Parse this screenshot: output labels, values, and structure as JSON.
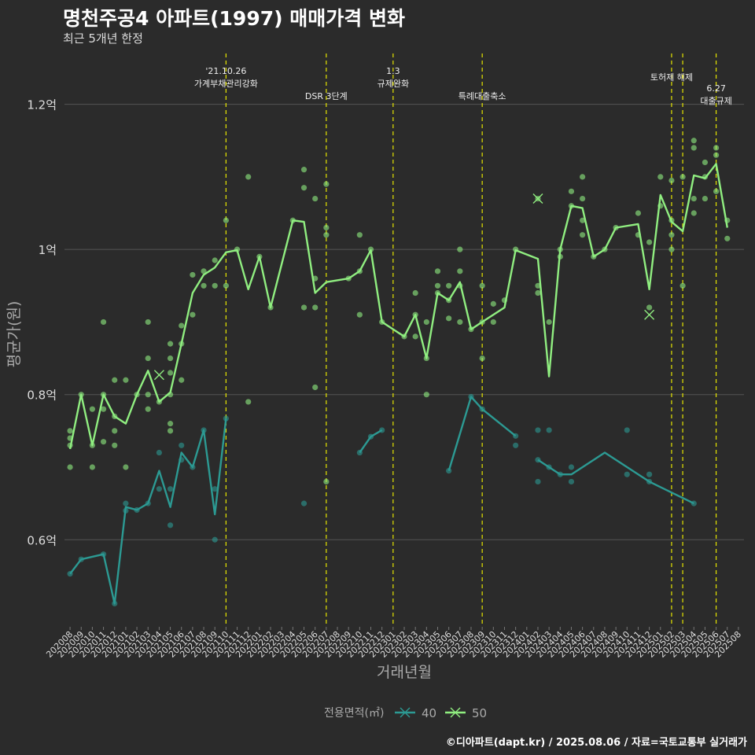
{
  "title": "명천주공4 아파트(1997) 매매가격 변화",
  "subtitle": "최근 5개년 한정",
  "caption": "©디아파트(dapt.kr) / 2025.08.06 / 자료=국토교통부 실거래가",
  "chart_data": {
    "type": "line",
    "xlabel": "거래년월",
    "ylabel": "평균가(원)",
    "x": [
      "202008",
      "202009",
      "202010",
      "202011",
      "202012",
      "202101",
      "202102",
      "202103",
      "202104",
      "202105",
      "202106",
      "202107",
      "202108",
      "202109",
      "202110",
      "202111",
      "202112",
      "202201",
      "202202",
      "202203",
      "202204",
      "202205",
      "202206",
      "202207",
      "202208",
      "202209",
      "202210",
      "202211",
      "202212",
      "202301",
      "202302",
      "202303",
      "202304",
      "202305",
      "202306",
      "202307",
      "202308",
      "202309",
      "202310",
      "202311",
      "202312",
      "202401",
      "202402",
      "202403",
      "202404",
      "202405",
      "202406",
      "202407",
      "202408",
      "202409",
      "202410",
      "202411",
      "202412",
      "202501",
      "202502",
      "202503",
      "202504",
      "202505",
      "202506",
      "202507",
      "202508"
    ],
    "x_tick_labels": [
      "202008",
      "202009",
      "202010",
      "202011",
      "202012",
      "202101",
      "202102",
      "202103",
      "202104",
      "202105",
      "202106",
      "202107",
      "202108",
      "202109",
      "202110",
      "202111",
      "202112",
      "202201",
      "202202",
      "202203",
      "202204",
      "202205",
      "202206",
      "202207",
      "202208",
      "202209",
      "202210",
      "202211",
      "202212",
      "202301",
      "202302",
      "202303",
      "202304",
      "202305",
      "202306",
      "202307",
      "202308",
      "202309",
      "202310",
      "202311",
      "202312",
      "202401",
      "202402",
      "202403",
      "202404",
      "202405",
      "202406",
      "202407",
      "202408",
      "202409",
      "202410",
      "202411",
      "202412",
      "202501",
      "202502",
      "202503",
      "202504",
      "202505",
      "202506",
      "202507",
      "202508"
    ],
    "y_ticks": [
      0.6,
      0.8,
      1.0,
      1.2
    ],
    "y_tick_labels": [
      "0.6억",
      "0.8억",
      "1억",
      "1.2억"
    ],
    "ylim": [
      0.48,
      1.27
    ],
    "grid": true,
    "legend": {
      "title": "전용면적(㎡)",
      "position": "bottom"
    },
    "series": [
      {
        "name": "40",
        "color": "#2c9a93",
        "line": [
          [
            "202008",
            0.553
          ],
          [
            "202009",
            0.573
          ],
          [
            "202011",
            0.58
          ],
          [
            "202012",
            0.512
          ],
          [
            "202101",
            0.645
          ],
          [
            "202102",
            0.641
          ],
          [
            "202103",
            0.65
          ],
          [
            "202104",
            0.695
          ],
          [
            "202105",
            0.645
          ],
          [
            "202106",
            0.72
          ],
          [
            "202107",
            0.7
          ],
          [
            "202108",
            0.751
          ],
          [
            "202109",
            0.635
          ],
          [
            "202110",
            0.767
          ],
          null,
          [
            "202210",
            0.72
          ],
          [
            "202211",
            0.742
          ],
          [
            "202212",
            0.751
          ],
          null,
          [
            "202306",
            0.695
          ],
          [
            "202308",
            0.797
          ],
          [
            "202309",
            0.78
          ],
          [
            "202312",
            0.743
          ],
          null,
          [
            "202402",
            0.71
          ],
          [
            "202403",
            0.7
          ],
          [
            "202404",
            0.69
          ],
          [
            "202405",
            0.69
          ],
          [
            "202408",
            0.72
          ],
          [
            "202412",
            0.68
          ],
          [
            "202504",
            0.65
          ]
        ],
        "points": [
          [
            "202008",
            0.553
          ],
          [
            "202009",
            0.573
          ],
          [
            "202011",
            0.58
          ],
          [
            "202012",
            0.512
          ],
          [
            "202101",
            0.65
          ],
          [
            "202101",
            0.64
          ],
          [
            "202102",
            0.641
          ],
          [
            "202103",
            0.65
          ],
          [
            "202104",
            0.72
          ],
          [
            "202104",
            0.67
          ],
          [
            "202105",
            0.62
          ],
          [
            "202105",
            0.67
          ],
          [
            "202106",
            0.73
          ],
          [
            "202106",
            0.71
          ],
          [
            "202107",
            0.7
          ],
          [
            "202108",
            0.751
          ],
          [
            "202109",
            0.67
          ],
          [
            "202109",
            0.6
          ],
          [
            "202110",
            0.767
          ],
          [
            "202205",
            0.65
          ],
          [
            "202210",
            0.72
          ],
          [
            "202211",
            0.742
          ],
          [
            "202212",
            0.751
          ],
          [
            "202306",
            0.695
          ],
          [
            "202308",
            0.797
          ],
          [
            "202309",
            0.78
          ],
          [
            "202312",
            0.743
          ],
          [
            "202312",
            0.73
          ],
          [
            "202402",
            0.751
          ],
          [
            "202402",
            0.68
          ],
          [
            "202402",
            0.71
          ],
          [
            "202403",
            0.751
          ],
          [
            "202403",
            0.7
          ],
          [
            "202404",
            0.69
          ],
          [
            "202405",
            0.7
          ],
          [
            "202405",
            0.68
          ],
          [
            "202410",
            0.751
          ],
          [
            "202410",
            0.69
          ],
          [
            "202412",
            0.69
          ],
          [
            "202412",
            0.68
          ],
          [
            "202504",
            0.65
          ]
        ],
        "highlights": []
      },
      {
        "name": "50",
        "color": "#90ee80",
        "line": [
          [
            "202008",
            0.725
          ],
          [
            "202009",
            0.8
          ],
          [
            "202010",
            0.73
          ],
          [
            "202011",
            0.8
          ],
          [
            "202012",
            0.77
          ],
          [
            "202101",
            0.76
          ],
          [
            "202102",
            0.8
          ],
          [
            "202103",
            0.833
          ],
          [
            "202104",
            0.79
          ],
          [
            "202105",
            0.803
          ],
          [
            "202106",
            0.87
          ],
          [
            "202107",
            0.94
          ],
          [
            "202108",
            0.965
          ],
          [
            "202109",
            0.975
          ],
          [
            "202110",
            0.996
          ],
          [
            "202111",
            0.999
          ],
          [
            "202112",
            0.945
          ],
          [
            "202201",
            0.99
          ],
          [
            "202202",
            0.92
          ],
          [
            "202204",
            1.04
          ],
          [
            "202205",
            1.038
          ],
          [
            "202206",
            0.94
          ],
          [
            "202207",
            0.955
          ],
          [
            "202209",
            0.96
          ],
          [
            "202210",
            0.97
          ],
          [
            "202211",
            0.999
          ],
          [
            "202212",
            0.9
          ],
          [
            "202302",
            0.88
          ],
          [
            "202303",
            0.91
          ],
          [
            "202304",
            0.85
          ],
          [
            "202305",
            0.94
          ],
          [
            "202306",
            0.93
          ],
          [
            "202307",
            0.955
          ],
          [
            "202308",
            0.89
          ],
          [
            "202309",
            0.9
          ],
          [
            "202311",
            0.92
          ],
          [
            "202312",
            0.999
          ],
          [
            "202402",
            0.987
          ],
          [
            "202403",
            0.825
          ],
          [
            "202404",
            1.0
          ],
          [
            "202405",
            1.06
          ],
          [
            "202406",
            1.057
          ],
          [
            "202407",
            0.99
          ],
          [
            "202408",
            1.0
          ],
          [
            "202409",
            1.03
          ],
          [
            "202411",
            1.035
          ],
          [
            "202412",
            0.945
          ],
          [
            "202501",
            1.075
          ],
          [
            "202502",
            1.038
          ],
          [
            "202503",
            1.025
          ],
          [
            "202504",
            1.102
          ],
          [
            "202505",
            1.098
          ],
          [
            "202506",
            1.118
          ],
          [
            "202507",
            1.03
          ]
        ],
        "points": [
          [
            "202008",
            0.75
          ],
          [
            "202008",
            0.74
          ],
          [
            "202008",
            0.73
          ],
          [
            "202008",
            0.7
          ],
          [
            "202009",
            0.8
          ],
          [
            "202010",
            0.78
          ],
          [
            "202010",
            0.73
          ],
          [
            "202010",
            0.7
          ],
          [
            "202011",
            0.9
          ],
          [
            "202011",
            0.8
          ],
          [
            "202011",
            0.78
          ],
          [
            "202011",
            0.735
          ],
          [
            "202012",
            0.82
          ],
          [
            "202012",
            0.77
          ],
          [
            "202012",
            0.75
          ],
          [
            "202012",
            0.73
          ],
          [
            "202101",
            0.82
          ],
          [
            "202101",
            0.7
          ],
          [
            "202102",
            0.8
          ],
          [
            "202103",
            0.9
          ],
          [
            "202103",
            0.85
          ],
          [
            "202103",
            0.8
          ],
          [
            "202103",
            0.78
          ],
          [
            "202104",
            0.79
          ],
          [
            "202105",
            0.87
          ],
          [
            "202105",
            0.85
          ],
          [
            "202105",
            0.83
          ],
          [
            "202105",
            0.8
          ],
          [
            "202105",
            0.76
          ],
          [
            "202105",
            0.75
          ],
          [
            "202106",
            0.895
          ],
          [
            "202106",
            0.87
          ],
          [
            "202106",
            0.82
          ],
          [
            "202107",
            0.965
          ],
          [
            "202107",
            0.91
          ],
          [
            "202108",
            0.97
          ],
          [
            "202108",
            0.95
          ],
          [
            "202109",
            0.985
          ],
          [
            "202109",
            0.95
          ],
          [
            "202110",
            1.04
          ],
          [
            "202110",
            0.95
          ],
          [
            "202111",
            1.0
          ],
          [
            "202112",
            1.1
          ],
          [
            "202112",
            0.79
          ],
          [
            "202201",
            0.99
          ],
          [
            "202202",
            0.92
          ],
          [
            "202204",
            1.04
          ],
          [
            "202205",
            1.11
          ],
          [
            "202205",
            1.085
          ],
          [
            "202205",
            0.92
          ],
          [
            "202206",
            1.07
          ],
          [
            "202206",
            0.96
          ],
          [
            "202206",
            0.92
          ],
          [
            "202206",
            0.81
          ],
          [
            "202207",
            1.09
          ],
          [
            "202207",
            1.03
          ],
          [
            "202207",
            1.02
          ],
          [
            "202207",
            0.68
          ],
          [
            "202209",
            0.96
          ],
          [
            "202210",
            1.02
          ],
          [
            "202210",
            0.97
          ],
          [
            "202210",
            0.91
          ],
          [
            "202211",
            1.0
          ],
          [
            "202212",
            0.9
          ],
          [
            "202302",
            0.88
          ],
          [
            "202303",
            0.94
          ],
          [
            "202303",
            0.91
          ],
          [
            "202303",
            0.88
          ],
          [
            "202304",
            0.9
          ],
          [
            "202304",
            0.85
          ],
          [
            "202304",
            0.8
          ],
          [
            "202305",
            0.97
          ],
          [
            "202305",
            0.95
          ],
          [
            "202305",
            0.94
          ],
          [
            "202306",
            0.95
          ],
          [
            "202306",
            0.93
          ],
          [
            "202306",
            0.905
          ],
          [
            "202307",
            1.0
          ],
          [
            "202307",
            0.97
          ],
          [
            "202307",
            0.95
          ],
          [
            "202307",
            0.9
          ],
          [
            "202308",
            0.89
          ],
          [
            "202309",
            0.95
          ],
          [
            "202309",
            0.9
          ],
          [
            "202309",
            0.85
          ],
          [
            "202310",
            0.925
          ],
          [
            "202310",
            0.9
          ],
          [
            "202311",
            0.93
          ],
          [
            "202312",
            1.0
          ],
          [
            "202402",
            1.07
          ],
          [
            "202402",
            0.95
          ],
          [
            "202402",
            0.94
          ],
          [
            "202403",
            0.9
          ],
          [
            "202404",
            1.0
          ],
          [
            "202404",
            0.99
          ],
          [
            "202405",
            1.08
          ],
          [
            "202405",
            1.06
          ],
          [
            "202406",
            1.1
          ],
          [
            "202406",
            1.07
          ],
          [
            "202406",
            1.04
          ],
          [
            "202406",
            1.02
          ],
          [
            "202407",
            0.99
          ],
          [
            "202408",
            1.0
          ],
          [
            "202409",
            1.03
          ],
          [
            "202411",
            1.05
          ],
          [
            "202411",
            1.02
          ],
          [
            "202412",
            1.01
          ],
          [
            "202412",
            0.92
          ],
          [
            "202501",
            1.1
          ],
          [
            "202501",
            1.06
          ],
          [
            "202502",
            1.095
          ],
          [
            "202502",
            1.04
          ],
          [
            "202502",
            1.02
          ],
          [
            "202502",
            1.0
          ],
          [
            "202503",
            1.1
          ],
          [
            "202503",
            0.95
          ],
          [
            "202504",
            1.15
          ],
          [
            "202504",
            1.14
          ],
          [
            "202504",
            1.07
          ],
          [
            "202504",
            1.05
          ],
          [
            "202505",
            1.12
          ],
          [
            "202505",
            1.1
          ],
          [
            "202505",
            1.07
          ],
          [
            "202506",
            1.14
          ],
          [
            "202506",
            1.13
          ],
          [
            "202506",
            1.08
          ],
          [
            "202507",
            1.04
          ],
          [
            "202507",
            1.015
          ]
        ],
        "highlights": [
          [
            "202104",
            0.827
          ],
          [
            "202402",
            1.07
          ],
          [
            "202412",
            0.91
          ]
        ]
      }
    ],
    "events": [
      {
        "x": "202110",
        "lines": [
          "'21.10.26",
          "가계부채관리강화"
        ],
        "row": 0
      },
      {
        "x": "202207",
        "lines": [
          "DSR 3단계"
        ],
        "row": 2
      },
      {
        "x": "202301",
        "lines": [
          "1.3",
          "규제완화"
        ],
        "row": 0
      },
      {
        "x": "202309",
        "lines": [
          "특례대출축소"
        ],
        "row": 2
      },
      {
        "x": "202502",
        "lines": [
          "토허제 해제"
        ],
        "row": 1
      },
      {
        "x": "202503",
        "lines": [],
        "row": 1
      },
      {
        "x": "202506",
        "lines": [
          "6.27",
          "대출규제"
        ],
        "row": 1.7
      }
    ]
  }
}
